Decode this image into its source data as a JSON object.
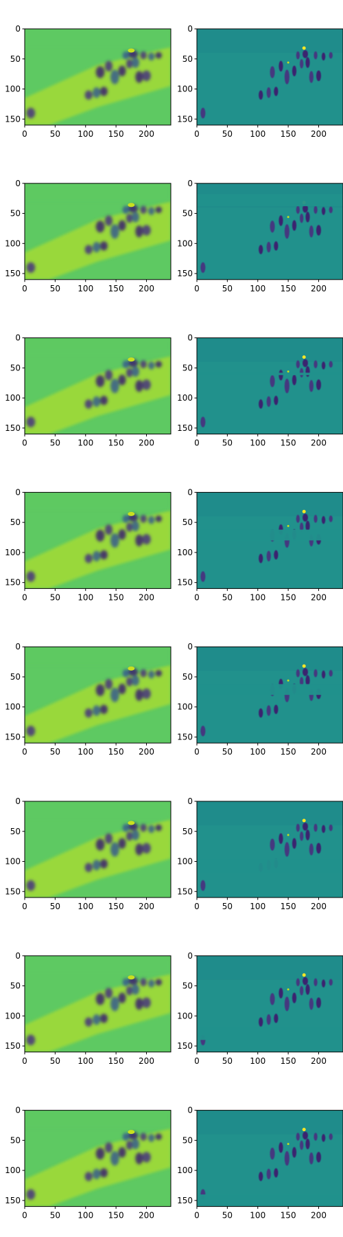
{
  "figure": {
    "rows": 8,
    "cols": 2,
    "colormap": "viridis",
    "axis_spine_color": "#000000",
    "background": "#ffffff",
    "panels_left_type": "smoothed reconstruction",
    "panels_right_type": "difference / detail map",
    "x_ticks": [
      "0",
      "50",
      "100",
      "150",
      "200"
    ],
    "y_ticks": [
      "0",
      "50",
      "100",
      "150"
    ],
    "x_range": [
      0,
      240
    ],
    "y_range": [
      0,
      160
    ],
    "image_extent": [
      0,
      239,
      159,
      0
    ],
    "row_masked_band_y": [
      [
        null,
        null
      ],
      [
        18,
        38
      ],
      [
        58,
        62
      ],
      [
        62,
        80
      ],
      [
        62,
        80
      ],
      [
        96,
        120
      ],
      [
        120,
        140
      ],
      [
        140,
        160
      ]
    ]
  },
  "colors": {
    "viridis_dark": "#3b1e6e",
    "viridis_deep": "#46327e",
    "viridis_mid_blue": "#365c8d",
    "viridis_teal": "#21918c",
    "viridis_teal_dark": "#1f8a8a",
    "viridis_green": "#5ec962",
    "viridis_light_green": "#a0da39",
    "viridis_yellow_green": "#c8e020",
    "viridis_yellow": "#fde725"
  }
}
